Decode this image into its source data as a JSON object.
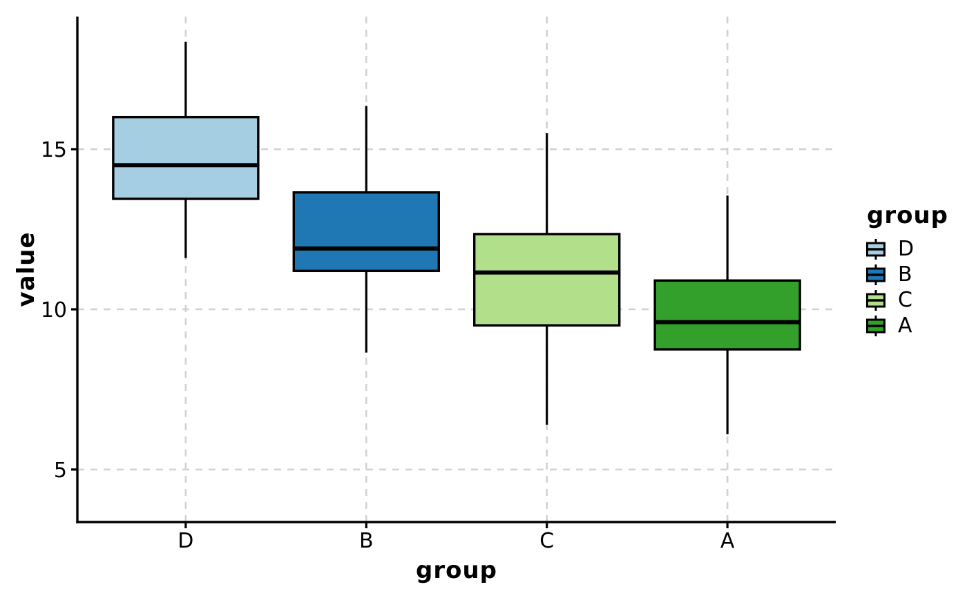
{
  "figure": {
    "background": "#FFFFFF"
  },
  "chart_data": {
    "type": "box",
    "title": "",
    "xlabel": "group",
    "ylabel": "value",
    "categories": [
      "D",
      "B",
      "C",
      "A"
    ],
    "series": [
      {
        "name": "D",
        "fill": "#A6CEE3",
        "min": 11.6,
        "q1": 13.45,
        "median": 14.5,
        "q3": 16.0,
        "max": 18.35
      },
      {
        "name": "B",
        "fill": "#1F78B4",
        "min": 8.65,
        "q1": 11.2,
        "median": 11.9,
        "q3": 13.65,
        "max": 16.35
      },
      {
        "name": "C",
        "fill": "#B2DF8A",
        "min": 6.4,
        "q1": 9.5,
        "median": 11.15,
        "q3": 12.35,
        "max": 15.5
      },
      {
        "name": "A",
        "fill": "#33A02C",
        "min": 6.1,
        "q1": 8.75,
        "median": 9.6,
        "q3": 10.9,
        "max": 13.55
      }
    ],
    "y_ticks": [
      5,
      10,
      15
    ],
    "ylim": [
      3.36,
      19.14
    ],
    "grid": "dashed",
    "legend": {
      "title": "group",
      "position": "right",
      "entries": [
        "D",
        "B",
        "C",
        "A"
      ]
    }
  },
  "styles": {
    "box_stroke": "#000000",
    "axis_color": "#000000",
    "text_color": "#000000",
    "grid_color": "#D2D2D2"
  }
}
